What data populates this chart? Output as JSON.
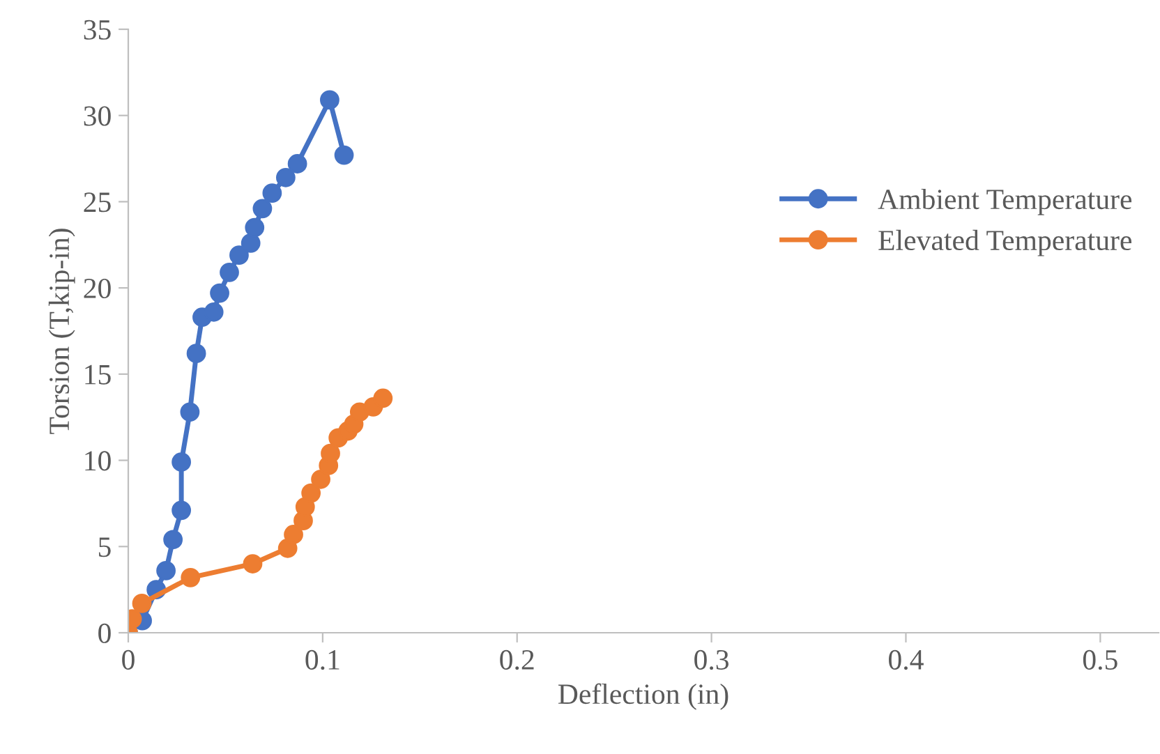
{
  "chart_data": {
    "type": "line",
    "xlabel": "Deflection (in)",
    "ylabel": "Torsion (T,kip-in)",
    "xlim": [
      0,
      0.53
    ],
    "xticks": [
      0,
      0.1,
      0.2,
      0.3,
      0.4,
      0.5
    ],
    "ylim": [
      0,
      35
    ],
    "yticks": [
      0,
      5,
      10,
      15,
      20,
      25,
      30,
      35
    ],
    "grid": false,
    "legend": "right",
    "marker": "circle",
    "line_style": "solid",
    "series": [
      {
        "name": "Ambient Temperature",
        "color": "#4472c4",
        "x": [
          0,
          0.0072,
          0.0144,
          0.0194,
          0.023,
          0.0273,
          0.0273,
          0.0317,
          0.035,
          0.038,
          0.044,
          0.047,
          0.052,
          0.057,
          0.063,
          0.065,
          0.069,
          0.074,
          0.081,
          0.087,
          0.1036,
          0.111
        ],
        "values": [
          0,
          0.7,
          2.5,
          3.6,
          5.4,
          7.1,
          9.9,
          12.8,
          16.2,
          18.3,
          18.6,
          19.7,
          20.9,
          21.9,
          22.6,
          23.5,
          24.6,
          25.5,
          26.4,
          27.2,
          30.9,
          27.7
        ]
      },
      {
        "name": "Elevated Temperature",
        "color": "#ed7d31",
        "x": [
          0,
          0.002,
          0.007,
          0.032,
          0.064,
          0.082,
          0.085,
          0.09,
          0.091,
          0.094,
          0.099,
          0.103,
          0.104,
          0.108,
          0.113,
          0.116,
          0.119,
          0.126,
          0.131
        ],
        "values": [
          0,
          0.8,
          1.7,
          3.2,
          4.0,
          4.9,
          5.7,
          6.5,
          7.3,
          8.1,
          8.9,
          9.7,
          10.4,
          11.3,
          11.7,
          12.1,
          12.8,
          13.1,
          13.6
        ]
      }
    ]
  }
}
